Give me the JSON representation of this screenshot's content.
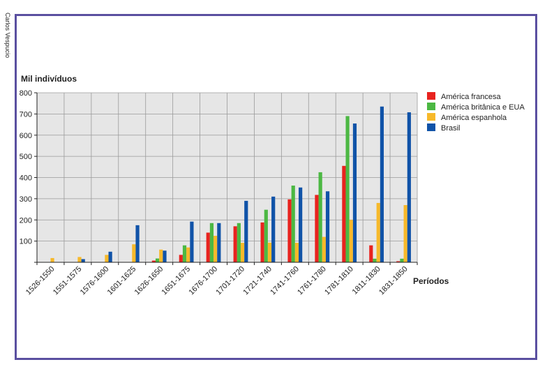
{
  "credit": "Carlos Vespucio",
  "chart_data": {
    "type": "bar",
    "title": "",
    "ylabel": "Mil indivíduos",
    "xlabel": "Períodos",
    "ylim": [
      0,
      800
    ],
    "yticks": [
      100,
      200,
      300,
      400,
      500,
      600,
      700,
      800
    ],
    "grid": true,
    "legend_position": "right",
    "categories": [
      "1526-1550",
      "1551-1575",
      "1576-1600",
      "1601-1625",
      "1626-1650",
      "1651-1675",
      "1676-1700",
      "1701-1720",
      "1721-1740",
      "1741-1760",
      "1761-1780",
      "1781-1810",
      "1811-1830",
      "1831-1850"
    ],
    "series": [
      {
        "name": "América francesa",
        "color": "#e8231f",
        "values": [
          0,
          0,
          0,
          0,
          8,
          35,
          140,
          170,
          188,
          297,
          318,
          455,
          80,
          5
        ]
      },
      {
        "name": "América britânica e EUA",
        "color": "#4cb843",
        "values": [
          0,
          0,
          0,
          0,
          18,
          80,
          185,
          185,
          248,
          362,
          425,
          690,
          17,
          17
        ]
      },
      {
        "name": "América espanhola",
        "color": "#f7b92a",
        "values": [
          20,
          25,
          35,
          85,
          60,
          70,
          125,
          92,
          93,
          92,
          120,
          200,
          280,
          270
        ]
      },
      {
        "name": "Brasil",
        "color": "#1053a8",
        "values": [
          0,
          15,
          50,
          175,
          55,
          192,
          185,
          290,
          310,
          353,
          335,
          655,
          735,
          708
        ]
      }
    ]
  }
}
